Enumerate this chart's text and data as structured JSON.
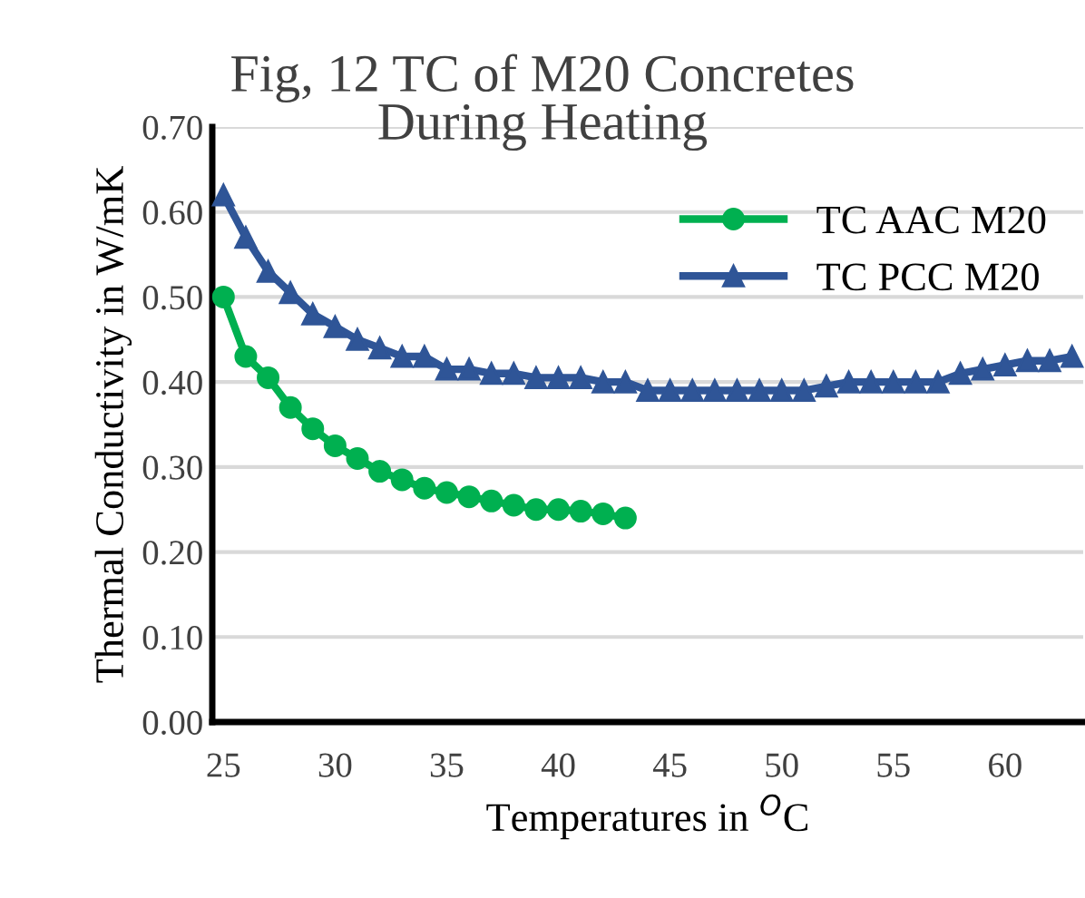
{
  "chart_data": {
    "type": "line",
    "title": "Fig, 12 TC of M20 Concretes\nDuring Heating",
    "xlabel": "Temperatures in $^{O}$C",
    "ylabel": "Thermal Conductivity in W/mK",
    "xlim": [
      24.5,
      63.5
    ],
    "xticks": [
      25,
      30,
      35,
      40,
      45,
      50,
      55,
      60
    ],
    "ylim": [
      0,
      0.7
    ],
    "yticks": [
      {
        "value": 0,
        "label": "0.00"
      },
      {
        "value": 0.1,
        "label": "0.10"
      },
      {
        "value": 0.2,
        "label": "0.20"
      },
      {
        "value": 0.3,
        "label": "0.30"
      },
      {
        "value": 0.4,
        "label": "0.40"
      },
      {
        "value": 0.5,
        "label": "0.50"
      },
      {
        "value": 0.6,
        "label": "0.60"
      },
      {
        "value": 0.7,
        "label": "0.70"
      }
    ],
    "grid": "y",
    "legend": "top right",
    "series": [
      {
        "name": "TC AAC M20",
        "color": "#00b050",
        "marker": "circle",
        "x": [
          25,
          26,
          27,
          28,
          29,
          30,
          31,
          32,
          33,
          34,
          35,
          36,
          37,
          38,
          39,
          40,
          41,
          42,
          43
        ],
        "values": [
          0.5,
          0.43,
          0.405,
          0.37,
          0.345,
          0.325,
          0.31,
          0.295,
          0.285,
          0.275,
          0.27,
          0.265,
          0.26,
          0.255,
          0.25,
          0.25,
          0.248,
          0.245,
          0.24
        ]
      },
      {
        "name": "TC PCC M20",
        "color": "#2f5597",
        "marker": "triangle",
        "x": [
          25,
          26,
          27,
          28,
          29,
          30,
          31,
          32,
          33,
          34,
          35,
          36,
          37,
          38,
          39,
          40,
          41,
          42,
          43,
          44,
          45,
          46,
          47,
          48,
          49,
          50,
          51,
          52,
          53,
          54,
          55,
          56,
          57,
          58,
          59,
          60,
          61,
          62,
          63
        ],
        "values": [
          0.62,
          0.57,
          0.53,
          0.505,
          0.48,
          0.465,
          0.45,
          0.44,
          0.43,
          0.43,
          0.415,
          0.415,
          0.41,
          0.41,
          0.405,
          0.405,
          0.405,
          0.4,
          0.4,
          0.39,
          0.39,
          0.39,
          0.39,
          0.39,
          0.39,
          0.39,
          0.39,
          0.395,
          0.4,
          0.4,
          0.4,
          0.4,
          0.4,
          0.41,
          0.415,
          0.42,
          0.425,
          0.425,
          0.43
        ]
      }
    ]
  }
}
